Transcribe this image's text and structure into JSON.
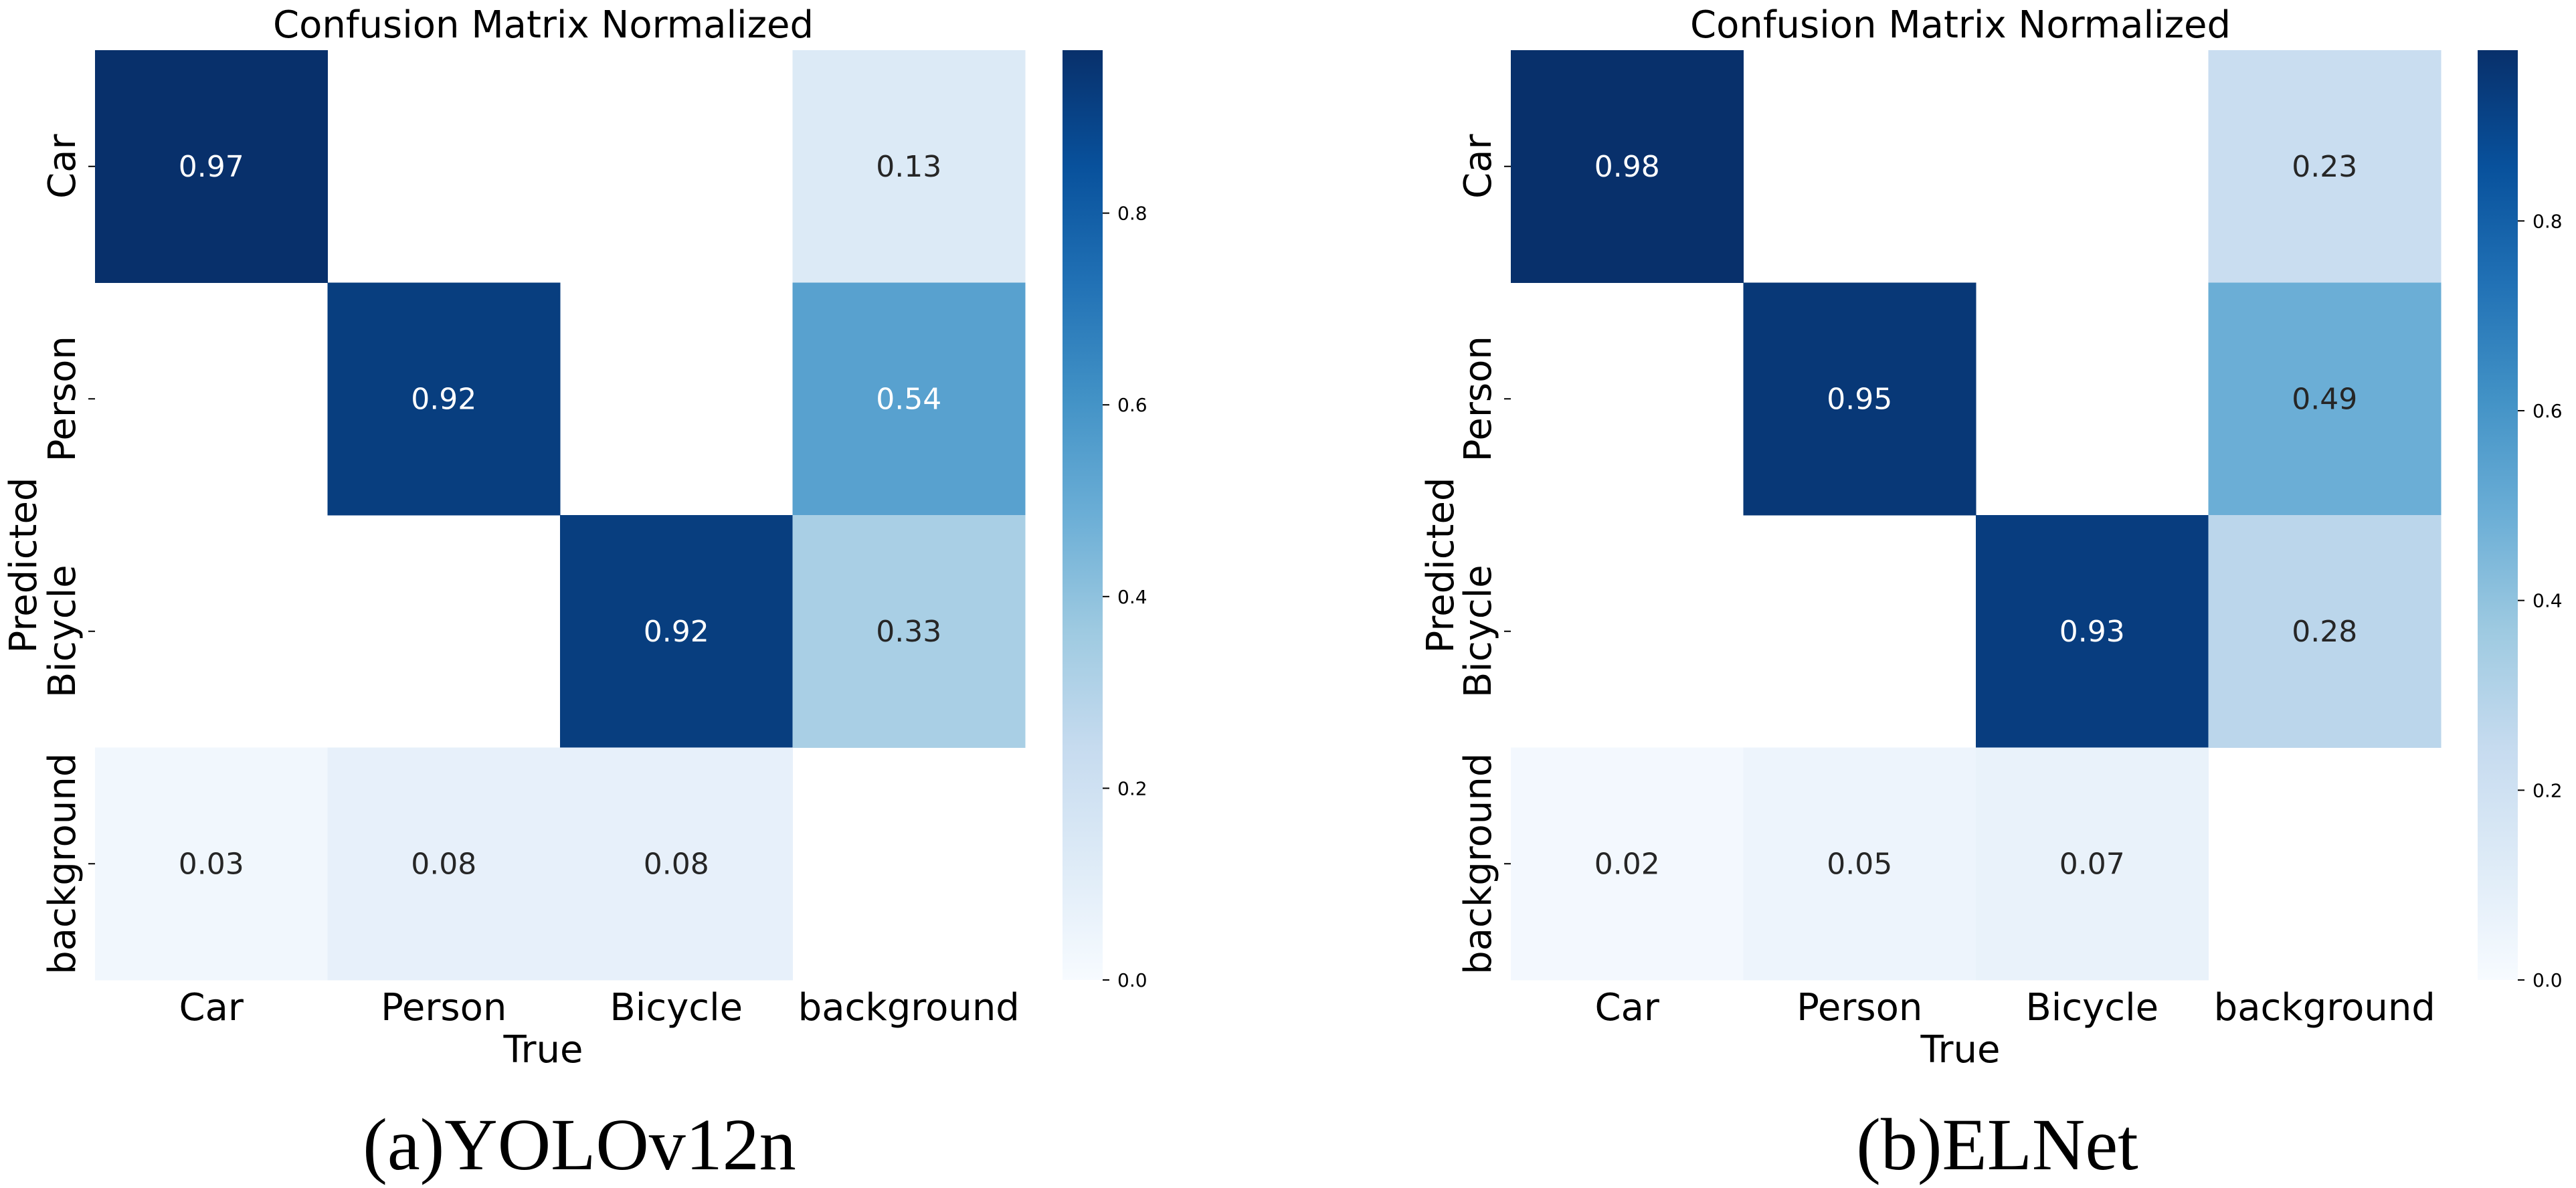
{
  "chart_data": [
    {
      "type": "heatmap",
      "title": "Confusion Matrix Normalized",
      "xlabel": "True",
      "ylabel": "Predicted",
      "x_categories": [
        "Car",
        "Person",
        "Bicycle",
        "background"
      ],
      "y_categories": [
        "Car",
        "Person",
        "Bicycle",
        "background"
      ],
      "values": [
        [
          0.97,
          null,
          null,
          0.13
        ],
        [
          null,
          0.92,
          null,
          0.54
        ],
        [
          null,
          null,
          0.92,
          0.33
        ],
        [
          0.03,
          0.08,
          0.08,
          null
        ]
      ],
      "colorbar": {
        "range": [
          0,
          0.97
        ],
        "ticks": [
          "0.0",
          "0.2",
          "0.4",
          "0.6",
          "0.8"
        ],
        "colormap": "Blues"
      },
      "caption": "(a)YOLOv12n"
    },
    {
      "type": "heatmap",
      "title": "Confusion Matrix Normalized",
      "xlabel": "True",
      "ylabel": "Predicted",
      "x_categories": [
        "Car",
        "Person",
        "Bicycle",
        "background"
      ],
      "y_categories": [
        "Car",
        "Person",
        "Bicycle",
        "background"
      ],
      "values": [
        [
          0.98,
          null,
          null,
          0.23
        ],
        [
          null,
          0.95,
          null,
          0.49
        ],
        [
          null,
          null,
          0.93,
          0.28
        ],
        [
          0.02,
          0.05,
          0.07,
          null
        ]
      ],
      "colorbar": {
        "range": [
          0,
          0.98
        ],
        "ticks": [
          "0.0",
          "0.2",
          "0.4",
          "0.6",
          "0.8"
        ],
        "colormap": "Blues"
      },
      "caption": "(b)ELNet"
    }
  ]
}
